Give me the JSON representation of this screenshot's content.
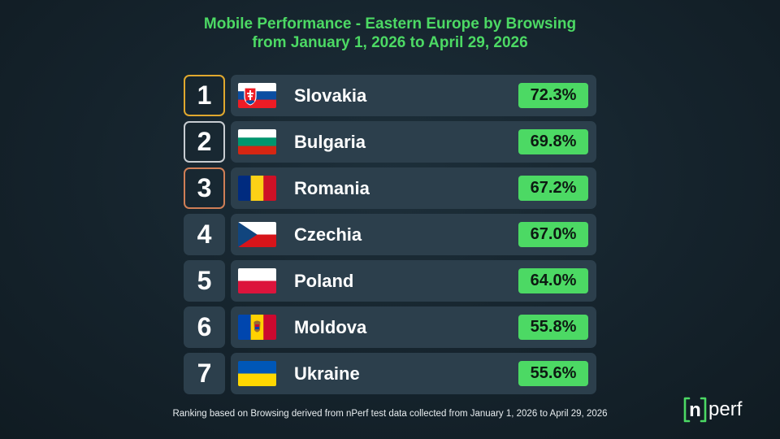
{
  "title": {
    "line1": "Mobile Performance - Eastern Europe by Browsing",
    "line2": "from January 1, 2026 to April 29, 2026"
  },
  "chart_data": {
    "type": "table",
    "metric": "Browsing",
    "rows": [
      {
        "rank": "1",
        "country": "Slovakia",
        "value": 72.3,
        "label": "72.3%",
        "flag": "slovakia-flag",
        "medal": "gold"
      },
      {
        "rank": "2",
        "country": "Bulgaria",
        "value": 69.8,
        "label": "69.8%",
        "flag": "bulgaria-flag",
        "medal": "silver"
      },
      {
        "rank": "3",
        "country": "Romania",
        "value": 67.2,
        "label": "67.2%",
        "flag": "romania-flag",
        "medal": "bronze"
      },
      {
        "rank": "4",
        "country": "Czechia",
        "value": 67.0,
        "label": "67.0%",
        "flag": "czechia-flag",
        "medal": "none"
      },
      {
        "rank": "5",
        "country": "Poland",
        "value": 64.0,
        "label": "64.0%",
        "flag": "poland-flag",
        "medal": "none"
      },
      {
        "rank": "6",
        "country": "Moldova",
        "value": 55.8,
        "label": "55.8%",
        "flag": "moldova-flag",
        "medal": "none"
      },
      {
        "rank": "7",
        "country": "Ukraine",
        "value": 55.6,
        "label": "55.6%",
        "flag": "ukraine-flag",
        "medal": "none"
      }
    ]
  },
  "footnote": "Ranking based on Browsing derived from nPerf test data collected from January 1, 2026 to April 29, 2026",
  "logo": {
    "text_n": "n",
    "text_perf": "perf"
  },
  "colors": {
    "accent_green": "#4cd964",
    "gold": "#e0a82e",
    "silver": "#c7ccd1",
    "bronze": "#cf7e56",
    "card": "#2c3f4c",
    "background": "#15232c"
  }
}
